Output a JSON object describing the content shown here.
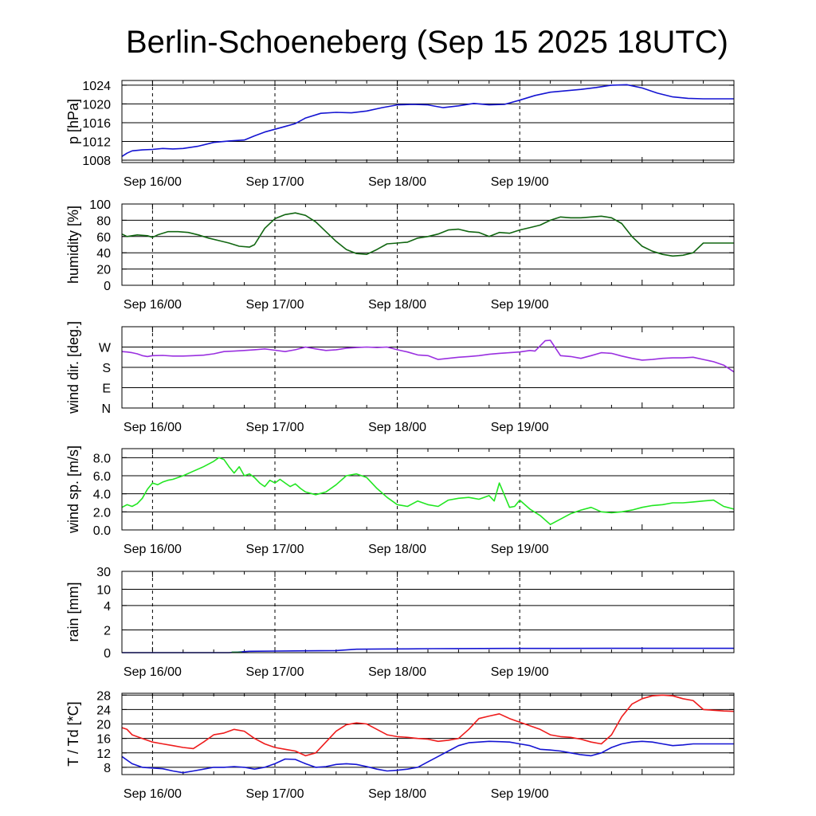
{
  "title": "Berlin-Schoeneberg (Sep 15 2025 18UTC)",
  "colors": {
    "pressure": "#1414d2",
    "humidity": "#116611",
    "wind_dir": "#9a30e0",
    "wind_speed": "#22e622",
    "rain": "#1414d2",
    "rain_start": "#1a8f4a",
    "temperature": "#ee1c1c",
    "dewpoint": "#1414d2"
  },
  "chart_data": [
    {
      "type": "line",
      "panel": "pressure",
      "ylabel": "p [hPa]",
      "x_tick_labels": [
        "Sep 16/00",
        "Sep 17/00",
        "Sep 18/00",
        "Sep 19/00"
      ],
      "xlim_hours": [
        -6,
        114
      ],
      "ylim": [
        1007.5,
        1025
      ],
      "y_ticks": [
        1008,
        1012,
        1016,
        1020,
        1024
      ],
      "series": [
        {
          "key": "pressure",
          "x_hours": [
            -6,
            -5,
            -4,
            -2,
            0,
            2,
            4,
            6,
            9,
            12,
            15,
            18,
            20,
            22,
            24,
            26,
            28,
            30,
            33,
            36,
            39,
            42,
            45,
            48,
            51,
            54,
            57,
            60,
            63,
            66,
            69,
            72,
            75,
            78,
            81,
            84,
            87,
            90,
            93,
            96,
            99,
            102,
            105,
            108,
            111,
            114
          ],
          "values": [
            1008.8,
            1009.5,
            1010.0,
            1010.2,
            1010.3,
            1010.5,
            1010.4,
            1010.5,
            1011.0,
            1011.8,
            1012.1,
            1012.3,
            1013.2,
            1014.0,
            1014.6,
            1015.2,
            1015.8,
            1017.0,
            1018.0,
            1018.2,
            1018.1,
            1018.5,
            1019.2,
            1019.8,
            1019.9,
            1019.8,
            1019.2,
            1019.6,
            1020.1,
            1019.8,
            1019.9,
            1020.8,
            1021.8,
            1022.5,
            1022.8,
            1023.1,
            1023.5,
            1024.0,
            1024.1,
            1023.4,
            1022.3,
            1021.5,
            1021.2,
            1021.1,
            1021.1,
            1021.1
          ]
        }
      ]
    },
    {
      "type": "line",
      "panel": "humidity",
      "ylabel": "humidity [%]",
      "x_tick_labels": [
        "Sep 16/00",
        "Sep 17/00",
        "Sep 18/00",
        "Sep 19/00"
      ],
      "xlim_hours": [
        -6,
        114
      ],
      "ylim": [
        0,
        100
      ],
      "y_ticks": [
        0,
        20,
        40,
        60,
        80,
        100
      ],
      "series": [
        {
          "key": "humidity",
          "x_hours": [
            -6,
            -5,
            -3,
            -1,
            0,
            1,
            3,
            5,
            7,
            9,
            11,
            13,
            15,
            17,
            19,
            20,
            21,
            22,
            24,
            26,
            28,
            30,
            32,
            34,
            36,
            38,
            40,
            42,
            44,
            46,
            48,
            50,
            52,
            54,
            56,
            58,
            60,
            62,
            64,
            66,
            68,
            70,
            72,
            74,
            76,
            78,
            80,
            82,
            84,
            86,
            88,
            90,
            92,
            94,
            96,
            98,
            100,
            102,
            104,
            106,
            108,
            110,
            112,
            114
          ],
          "values": [
            63,
            60,
            62,
            61,
            59,
            62,
            66,
            66,
            65,
            62,
            58,
            55,
            52,
            48,
            47,
            50,
            60,
            70,
            82,
            87,
            89,
            86,
            78,
            66,
            54,
            44,
            39,
            38,
            44,
            51,
            52,
            53,
            58,
            60,
            63,
            68,
            69,
            66,
            65,
            60,
            65,
            64,
            68,
            71,
            74,
            80,
            84,
            83,
            83,
            84,
            85,
            83,
            76,
            60,
            48,
            42,
            38,
            36,
            37,
            40,
            52,
            52,
            52,
            52
          ]
        }
      ]
    },
    {
      "type": "line",
      "panel": "wind_direction",
      "ylabel": "wind dir. [deg.]",
      "x_tick_labels": [
        "Sep 16/00",
        "Sep 17/00",
        "Sep 18/00",
        "Sep 19/00"
      ],
      "y_tick_labels": [
        "N",
        "E",
        "S",
        "W"
      ],
      "xlim_hours": [
        -6,
        114
      ],
      "ylim": [
        0,
        360
      ],
      "y_ticks": [
        0,
        90,
        180,
        270
      ],
      "series": [
        {
          "key": "wind_dir",
          "x_hours": [
            -6,
            -5,
            -4,
            -3,
            -2,
            -1,
            0,
            2,
            4,
            6,
            8,
            10,
            12,
            14,
            16,
            18,
            20,
            22,
            24,
            26,
            28,
            30,
            32,
            34,
            36,
            38,
            40,
            42,
            44,
            46,
            48,
            50,
            52,
            54,
            56,
            58,
            60,
            62,
            64,
            66,
            68,
            70,
            72,
            74,
            75,
            76,
            77,
            78,
            80,
            82,
            84,
            86,
            88,
            90,
            92,
            94,
            96,
            98,
            100,
            102,
            104,
            106,
            108,
            110,
            112,
            114
          ],
          "values": [
            250,
            248,
            245,
            240,
            232,
            228,
            232,
            233,
            230,
            230,
            232,
            234,
            240,
            250,
            252,
            255,
            258,
            262,
            256,
            250,
            258,
            270,
            262,
            255,
            258,
            265,
            268,
            270,
            268,
            270,
            258,
            248,
            235,
            232,
            215,
            220,
            225,
            228,
            232,
            238,
            242,
            245,
            248,
            255,
            252,
            275,
            298,
            300,
            232,
            228,
            220,
            232,
            245,
            242,
            230,
            220,
            212,
            215,
            220,
            222,
            222,
            225,
            215,
            205,
            190,
            160
          ]
        }
      ]
    },
    {
      "type": "line",
      "panel": "wind_speed",
      "ylabel": "wind sp. [m/s]",
      "x_tick_labels": [
        "Sep 16/00",
        "Sep 17/00",
        "Sep 18/00",
        "Sep 19/00"
      ],
      "xlim_hours": [
        -6,
        114
      ],
      "ylim": [
        0,
        9
      ],
      "y_ticks": [
        0,
        2,
        4,
        6,
        8
      ],
      "y_tick_labels": [
        "0.0",
        "2.0",
        "4.0",
        "6.0",
        "8.0"
      ],
      "series": [
        {
          "key": "wind_speed",
          "x_hours": [
            -6,
            -5,
            -4,
            -3,
            -2,
            -1,
            0,
            1,
            2,
            3,
            4,
            6,
            8,
            10,
            12,
            13,
            14,
            15,
            16,
            17,
            18,
            19,
            20,
            21,
            22,
            23,
            24,
            25,
            26,
            27,
            28,
            29,
            30,
            32,
            34,
            36,
            38,
            40,
            42,
            44,
            46,
            48,
            50,
            52,
            54,
            56,
            58,
            60,
            62,
            63,
            64,
            65,
            66,
            67,
            68,
            70,
            71,
            72,
            74,
            76,
            78,
            80,
            82,
            84,
            86,
            88,
            90,
            92,
            94,
            96,
            98,
            100,
            102,
            104,
            106,
            108,
            110,
            112,
            114
          ],
          "values": [
            2.5,
            2.8,
            2.6,
            2.9,
            3.5,
            4.5,
            5.2,
            5.0,
            5.3,
            5.5,
            5.6,
            6.0,
            6.5,
            7.0,
            7.6,
            8.0,
            7.8,
            7.0,
            6.3,
            7.0,
            6.0,
            6.2,
            5.8,
            5.2,
            4.8,
            5.5,
            5.2,
            5.6,
            5.2,
            4.8,
            5.1,
            4.6,
            4.2,
            3.9,
            4.2,
            5.0,
            6.0,
            6.2,
            5.8,
            4.6,
            3.6,
            2.8,
            2.6,
            3.2,
            2.8,
            2.6,
            3.3,
            3.5,
            3.6,
            3.5,
            3.4,
            3.6,
            3.8,
            3.2,
            5.2,
            2.5,
            2.6,
            3.3,
            2.3,
            1.6,
            0.6,
            1.2,
            1.8,
            2.2,
            2.5,
            2.0,
            1.9,
            2.0,
            2.2,
            2.5,
            2.7,
            2.8,
            3.0,
            3.0,
            3.1,
            3.2,
            3.3,
            2.6,
            2.3
          ]
        }
      ]
    },
    {
      "type": "line",
      "panel": "rain",
      "ylabel": "rain [mm]",
      "x_tick_labels": [
        "Sep 16/00",
        "Sep 17/00",
        "Sep 18/00",
        "Sep 19/00"
      ],
      "xlim_hours": [
        -6,
        114
      ],
      "y_tick_labels": [
        "0",
        "2",
        "4",
        "10",
        "30"
      ],
      "y_ticks": [
        0,
        2,
        4,
        10,
        30
      ],
      "series": [
        {
          "key": "rain",
          "x_hours": [
            -6,
            0,
            5,
            10,
            15,
            19,
            24,
            30,
            36,
            40,
            45,
            50,
            55,
            60,
            70,
            80,
            90,
            100,
            114
          ],
          "values": [
            0,
            0,
            0,
            0,
            0,
            0.12,
            0.14,
            0.16,
            0.18,
            0.3,
            0.32,
            0.33,
            0.35,
            0.36,
            0.37,
            0.37,
            0.38,
            0.38,
            0.38
          ]
        }
      ]
    },
    {
      "type": "line",
      "panel": "temperature",
      "ylabel": "T / Td [*C]",
      "x_tick_labels": [
        "Sep 16/00",
        "Sep 17/00",
        "Sep 18/00",
        "Sep 19/00"
      ],
      "xlim_hours": [
        -6,
        114
      ],
      "ylim": [
        6,
        28.5
      ],
      "y_ticks": [
        8,
        12,
        16,
        20,
        24,
        28
      ],
      "series": [
        {
          "key": "temperature",
          "x_hours": [
            -6,
            -5,
            -4,
            -2,
            0,
            2,
            4,
            6,
            8,
            10,
            12,
            14,
            16,
            18,
            20,
            22,
            24,
            26,
            28,
            30,
            32,
            34,
            36,
            38,
            40,
            42,
            44,
            46,
            48,
            50,
            52,
            54,
            56,
            58,
            60,
            62,
            64,
            66,
            68,
            70,
            72,
            74,
            76,
            78,
            80,
            82,
            84,
            86,
            88,
            90,
            92,
            94,
            96,
            98,
            100,
            102,
            104,
            106,
            108,
            110,
            112,
            114
          ],
          "values": [
            19,
            18.5,
            17,
            16,
            15,
            14.5,
            14,
            13.5,
            13.2,
            15,
            17,
            17.5,
            18.5,
            18,
            16,
            14.5,
            13.5,
            13,
            12.5,
            11.2,
            12,
            15,
            18,
            19.8,
            20.3,
            20,
            18.5,
            17,
            16.5,
            16.3,
            16,
            15.8,
            15.2,
            15.5,
            16,
            18.5,
            21.5,
            22.2,
            22.8,
            21.5,
            20.5,
            19.5,
            18.5,
            17,
            16.5,
            16.3,
            15.8,
            15,
            14.5,
            17,
            22,
            25.5,
            27,
            27.8,
            28,
            27.8,
            27,
            26.5,
            24,
            23.8,
            23.6,
            23.5
          ]
        },
        {
          "key": "dewpoint",
          "x_hours": [
            -6,
            -5,
            -4,
            -2,
            0,
            2,
            4,
            6,
            8,
            10,
            12,
            14,
            16,
            18,
            20,
            22,
            24,
            26,
            28,
            30,
            32,
            34,
            36,
            38,
            40,
            42,
            44,
            46,
            48,
            50,
            52,
            54,
            56,
            58,
            60,
            62,
            64,
            66,
            68,
            70,
            72,
            74,
            76,
            78,
            80,
            82,
            84,
            86,
            88,
            90,
            92,
            94,
            96,
            98,
            100,
            102,
            104,
            106,
            108,
            110,
            112,
            114
          ],
          "values": [
            11,
            10,
            9,
            8,
            7.8,
            7.6,
            7,
            6.5,
            7,
            7.5,
            8,
            8,
            8.2,
            8,
            7.5,
            8,
            9,
            10.3,
            10.2,
            9,
            8,
            8.2,
            8.8,
            9,
            8.8,
            8.2,
            7.5,
            7,
            7.2,
            7.5,
            8,
            9.5,
            11,
            12.5,
            14,
            14.8,
            15,
            15.2,
            15.1,
            15,
            14.5,
            14,
            13,
            12.8,
            12.5,
            12,
            11.5,
            11.2,
            12,
            13.5,
            14.5,
            15,
            15.2,
            15,
            14.5,
            14,
            14.2,
            14.5,
            14.5,
            14.5,
            14.5,
            14.5
          ]
        }
      ]
    }
  ]
}
